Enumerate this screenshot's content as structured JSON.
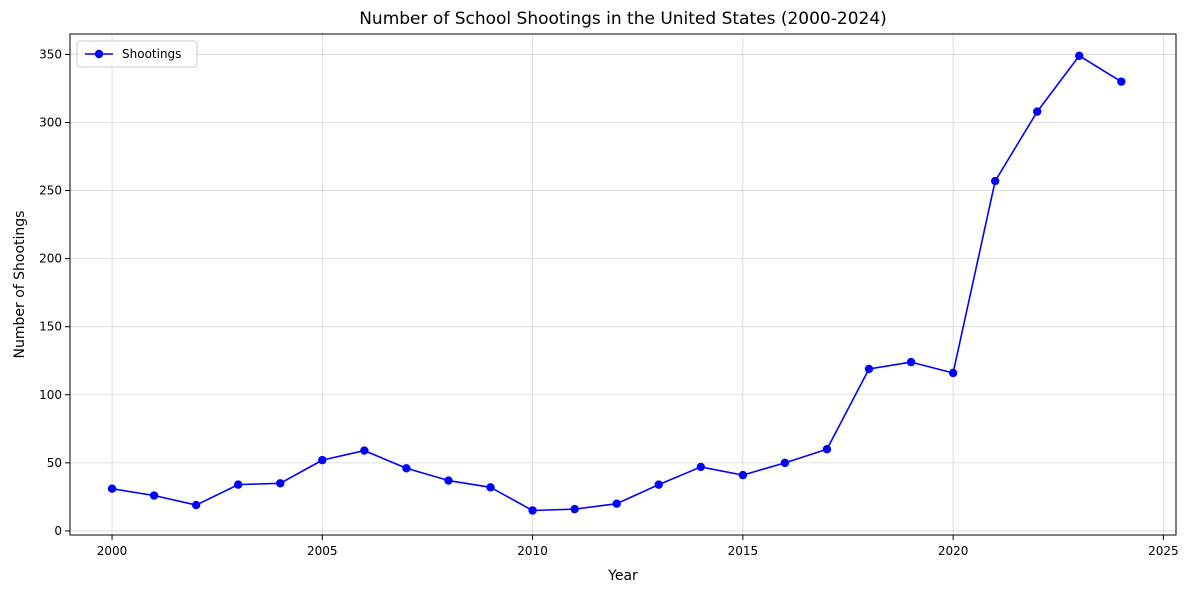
{
  "chart_data": {
    "type": "line",
    "title": "Number of School Shootings in the United States (2000-2024)",
    "xlabel": "Year",
    "ylabel": "Number of Shootings",
    "xlim": [
      1999,
      2025.3
    ],
    "ylim": [
      -3,
      365
    ],
    "xticks": [
      2000,
      2005,
      2010,
      2015,
      2020,
      2025
    ],
    "yticks": [
      0,
      50,
      100,
      150,
      200,
      250,
      300,
      350
    ],
    "grid": true,
    "legend_position": "top-left",
    "series": [
      {
        "name": "Shootings",
        "color": "#0000ff",
        "marker": "circle",
        "x": [
          2000,
          2001,
          2002,
          2003,
          2004,
          2005,
          2006,
          2007,
          2008,
          2009,
          2010,
          2011,
          2012,
          2013,
          2014,
          2015,
          2016,
          2017,
          2018,
          2019,
          2020,
          2021,
          2022,
          2023,
          2024
        ],
        "y": [
          31,
          26,
          19,
          34,
          35,
          52,
          59,
          46,
          37,
          32,
          15,
          16,
          20,
          34,
          47,
          41,
          50,
          60,
          119,
          124,
          116,
          257,
          308,
          349,
          330
        ]
      }
    ]
  }
}
